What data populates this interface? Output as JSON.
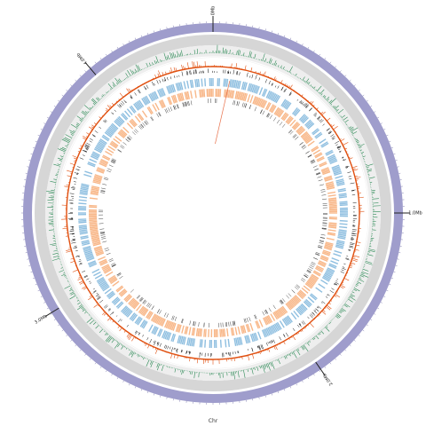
{
  "map": {
    "chr_label": "Chr",
    "major_ticks": [
      {
        "label": "0Mb",
        "frac": 0.0
      },
      {
        "label": "1.0Mb",
        "frac": 0.25
      },
      {
        "label": "2.0Mb",
        "frac": 0.404
      },
      {
        "label": "3.0Mb",
        "frac": 0.662
      },
      {
        "label": "4.0Mb",
        "frac": 0.888
      }
    ],
    "total_mb": 4.5,
    "colors": {
      "chromosome": "#9f9dcc",
      "gray_band": "#d6d6d6",
      "light_band": "#eeeeee",
      "gc_skew": "#2e8b57",
      "gc_content": "#e05010",
      "snp": "#111111",
      "forward_cds": "#8fbfe0",
      "reverse_cds": "#f8b88a",
      "dark_marks": "#444444"
    }
  }
}
